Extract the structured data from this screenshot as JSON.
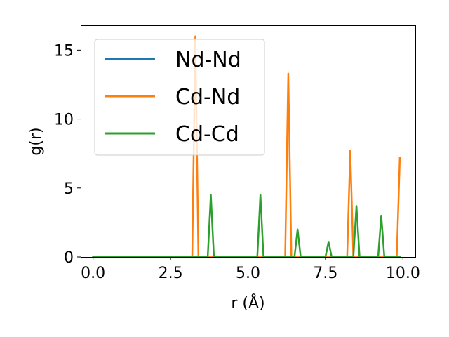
{
  "chart_data": {
    "type": "line",
    "xlabel": "r (Å)",
    "ylabel": "g(r)",
    "xlim": [
      -0.4,
      10.4
    ],
    "ylim": [
      0,
      16.8
    ],
    "xticks": [
      0.0,
      2.5,
      5.0,
      7.5,
      10.0
    ],
    "xtick_labels": [
      "0.0",
      "2.5",
      "5.0",
      "7.5",
      "10.0"
    ],
    "yticks": [
      0,
      5,
      10,
      15
    ],
    "ytick_labels": [
      "0",
      "5",
      "10",
      "15"
    ],
    "grid": false,
    "legend_position": "top-left",
    "series": [
      {
        "name": "Nd-Nd",
        "color": "#1f77b4",
        "x": [
          0.0,
          3.2,
          3.3,
          3.4,
          3.7,
          3.8,
          3.9,
          5.3,
          5.4,
          5.5,
          6.2,
          6.3,
          6.4,
          6.5,
          6.6,
          6.7,
          7.5,
          7.6,
          7.7,
          8.2,
          8.3,
          8.4,
          8.5,
          8.6,
          9.2,
          9.3,
          9.4,
          9.8,
          9.9
        ],
        "y": [
          0,
          0,
          0,
          0,
          0,
          0,
          0,
          0,
          0,
          0,
          0,
          0,
          0,
          0,
          0,
          0,
          0,
          0,
          0,
          0,
          0,
          0,
          0,
          0,
          0,
          0,
          0,
          0,
          0
        ]
      },
      {
        "name": "Cd-Nd",
        "color": "#ff7f0e",
        "x": [
          0.0,
          3.2,
          3.3,
          3.4,
          6.2,
          6.3,
          6.4,
          8.2,
          8.3,
          8.4,
          9.8,
          9.9
        ],
        "y": [
          0,
          0,
          16.0,
          0,
          0,
          13.3,
          0,
          0,
          7.7,
          0,
          0,
          7.2
        ]
      },
      {
        "name": "Cd-Cd",
        "color": "#2ca02c",
        "x": [
          0.0,
          3.7,
          3.8,
          3.9,
          5.3,
          5.4,
          5.5,
          6.5,
          6.6,
          6.7,
          7.5,
          7.6,
          7.7,
          8.4,
          8.5,
          8.6,
          9.2,
          9.3,
          9.4,
          9.9
        ],
        "y": [
          0,
          0,
          4.5,
          0,
          0,
          4.5,
          0,
          0,
          2.0,
          0,
          0,
          1.1,
          0,
          0,
          3.7,
          0,
          0,
          3.0,
          0,
          0
        ]
      }
    ]
  }
}
